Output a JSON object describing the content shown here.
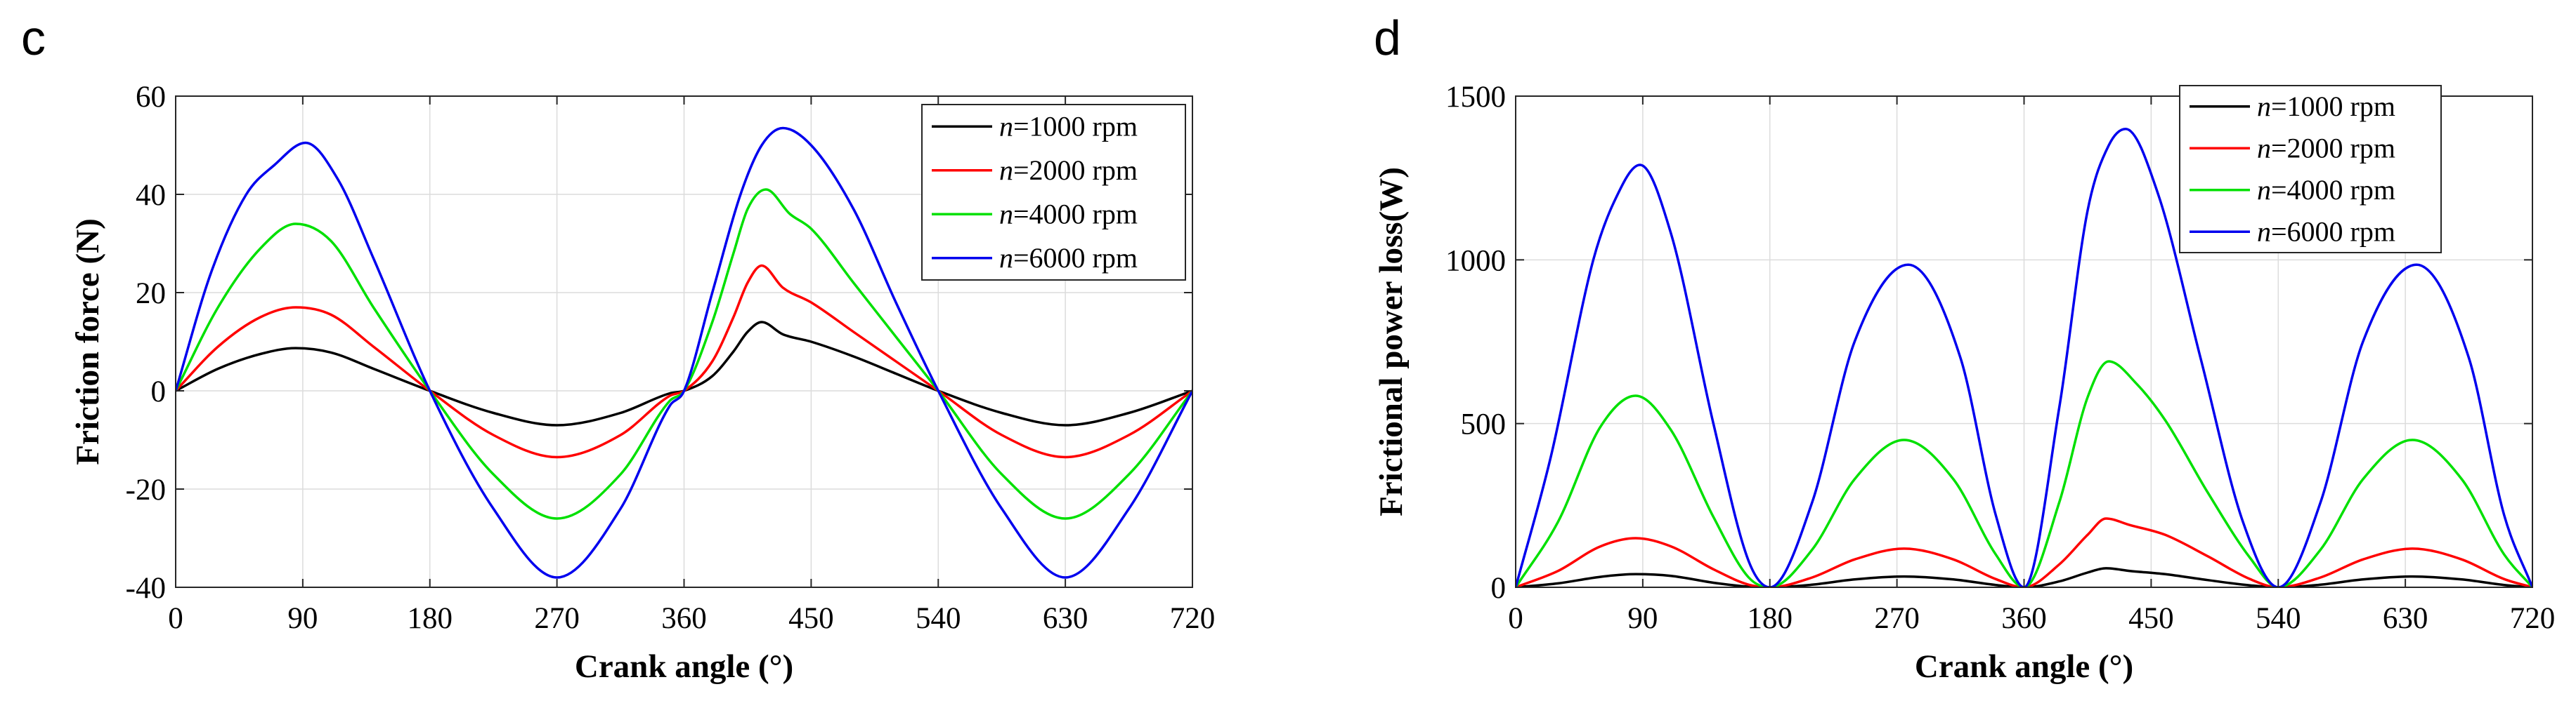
{
  "chart_data": [
    {
      "panel": "c",
      "type": "line",
      "title": "",
      "xlabel": "Crank angle (°)",
      "ylabel": "Friction force (N)",
      "xlim": [
        0,
        720
      ],
      "ylim": [
        -40,
        60
      ],
      "xticks": [
        0,
        90,
        180,
        270,
        360,
        450,
        540,
        630,
        720
      ],
      "yticks": [
        -40,
        -20,
        0,
        20,
        40,
        60
      ],
      "grid": true,
      "legend_position": "top-right",
      "series": [
        {
          "name": "n=1000 rpm",
          "var": "n",
          "rest": "=1000 rpm",
          "color": "#000000",
          "x": [
            0,
            30,
            60,
            85,
            110,
            140,
            180,
            225,
            270,
            315,
            350,
            360,
            380,
            395,
            405,
            415,
            430,
            450,
            480,
            510,
            540,
            585,
            630,
            675,
            720
          ],
          "y": [
            0,
            4.5,
            7.5,
            8.7,
            7.8,
            4.5,
            0,
            -4.5,
            -7,
            -4.5,
            -0.5,
            0,
            3,
            8,
            12,
            14,
            11.5,
            10,
            7,
            3.5,
            0,
            -4.5,
            -7,
            -4.5,
            0
          ]
        },
        {
          "name": "n=2000 rpm",
          "var": "n",
          "rest": "=2000 rpm",
          "color": "#ff0000",
          "x": [
            0,
            30,
            60,
            85,
            110,
            140,
            180,
            225,
            270,
            315,
            350,
            360,
            380,
            395,
            405,
            415,
            430,
            450,
            480,
            510,
            540,
            585,
            630,
            675,
            720
          ],
          "y": [
            0,
            9,
            15,
            17,
            15.5,
            9,
            0,
            -9,
            -13.5,
            -9,
            -1,
            0,
            6,
            15,
            22,
            25.5,
            21,
            18,
            12,
            6,
            0,
            -9,
            -13.5,
            -9,
            0
          ]
        },
        {
          "name": "n=4000 rpm",
          "var": "n",
          "rest": "=4000 rpm",
          "color": "#00e000",
          "x": [
            0,
            30,
            60,
            85,
            110,
            140,
            180,
            225,
            270,
            315,
            350,
            360,
            380,
            395,
            405,
            418,
            435,
            450,
            480,
            510,
            540,
            585,
            630,
            675,
            720
          ],
          "y": [
            0,
            17,
            29,
            34,
            30.5,
            17,
            0,
            -17,
            -26,
            -17,
            -2,
            0,
            14,
            28,
            37,
            41,
            36,
            33,
            22,
            11,
            0,
            -17,
            -26,
            -17,
            0
          ]
        },
        {
          "name": "n=6000 rpm",
          "var": "n",
          "rest": "=6000 rpm",
          "color": "#0000ee",
          "x": [
            0,
            25,
            50,
            70,
            92,
            115,
            140,
            180,
            225,
            270,
            315,
            350,
            360,
            380,
            400,
            415,
            430,
            450,
            480,
            510,
            540,
            585,
            630,
            675,
            720
          ],
          "y": [
            0,
            24,
            40,
            46,
            50.5,
            43,
            27,
            0,
            -24,
            -38,
            -24,
            -3,
            0,
            20,
            40,
            50,
            53.5,
            50,
            37,
            18,
            0,
            -24,
            -38,
            -24,
            0
          ]
        }
      ]
    },
    {
      "panel": "d",
      "type": "line",
      "title": "",
      "xlabel": "Crank angle (°)",
      "ylabel": "Frictional power loss(W)",
      "xlim": [
        0,
        720
      ],
      "ylim": [
        0,
        1500
      ],
      "xticks": [
        0,
        90,
        180,
        270,
        360,
        450,
        540,
        630,
        720
      ],
      "yticks": [
        0,
        500,
        1000,
        1500
      ],
      "grid": true,
      "legend_position": "top-right",
      "series": [
        {
          "name": "n=1000 rpm",
          "var": "n",
          "rest": "=1000 rpm",
          "color": "#000000",
          "x": [
            0,
            30,
            60,
            85,
            110,
            140,
            165,
            180,
            210,
            240,
            275,
            310,
            340,
            360,
            385,
            405,
            418,
            435,
            460,
            490,
            520,
            540,
            570,
            600,
            635,
            670,
            700,
            720
          ],
          "y": [
            0,
            12,
            32,
            40,
            35,
            14,
            2,
            0,
            8,
            24,
            33,
            24,
            7,
            0,
            18,
            45,
            58,
            50,
            40,
            22,
            6,
            0,
            8,
            24,
            33,
            24,
            7,
            0
          ]
        },
        {
          "name": "n=2000 rpm",
          "var": "n",
          "rest": "=2000 rpm",
          "color": "#ff0000",
          "x": [
            0,
            30,
            60,
            85,
            110,
            140,
            165,
            180,
            210,
            240,
            275,
            310,
            340,
            360,
            385,
            405,
            418,
            435,
            460,
            490,
            520,
            540,
            570,
            600,
            635,
            670,
            700,
            720
          ],
          "y": [
            0,
            50,
            125,
            150,
            125,
            55,
            8,
            0,
            30,
            85,
            118,
            85,
            25,
            0,
            70,
            160,
            210,
            190,
            160,
            95,
            25,
            0,
            30,
            85,
            118,
            85,
            25,
            0
          ]
        },
        {
          "name": "n=4000 rpm",
          "var": "n",
          "rest": "=4000 rpm",
          "color": "#00e000",
          "x": [
            0,
            30,
            60,
            85,
            110,
            140,
            165,
            180,
            210,
            240,
            275,
            310,
            340,
            360,
            385,
            405,
            420,
            440,
            460,
            490,
            520,
            540,
            570,
            600,
            635,
            670,
            700,
            720
          ],
          "y": [
            0,
            200,
            490,
            585,
            480,
            215,
            30,
            0,
            115,
            330,
            450,
            330,
            100,
            0,
            260,
            580,
            690,
            620,
            510,
            290,
            90,
            0,
            115,
            330,
            450,
            330,
            100,
            0
          ]
        },
        {
          "name": "n=6000 rpm",
          "var": "n",
          "rest": "=6000 rpm",
          "color": "#0000ee",
          "x": [
            0,
            25,
            55,
            70,
            88,
            110,
            140,
            165,
            180,
            210,
            240,
            278,
            315,
            340,
            360,
            385,
            405,
            420,
            432,
            455,
            485,
            515,
            540,
            570,
            600,
            638,
            675,
            700,
            720
          ],
          "y": [
            0,
            400,
            1000,
            1180,
            1290,
            1080,
            500,
            80,
            0,
            260,
            750,
            985,
            700,
            220,
            0,
            550,
            1150,
            1350,
            1400,
            1200,
            700,
            200,
            0,
            260,
            750,
            985,
            700,
            220,
            0
          ]
        }
      ]
    }
  ]
}
